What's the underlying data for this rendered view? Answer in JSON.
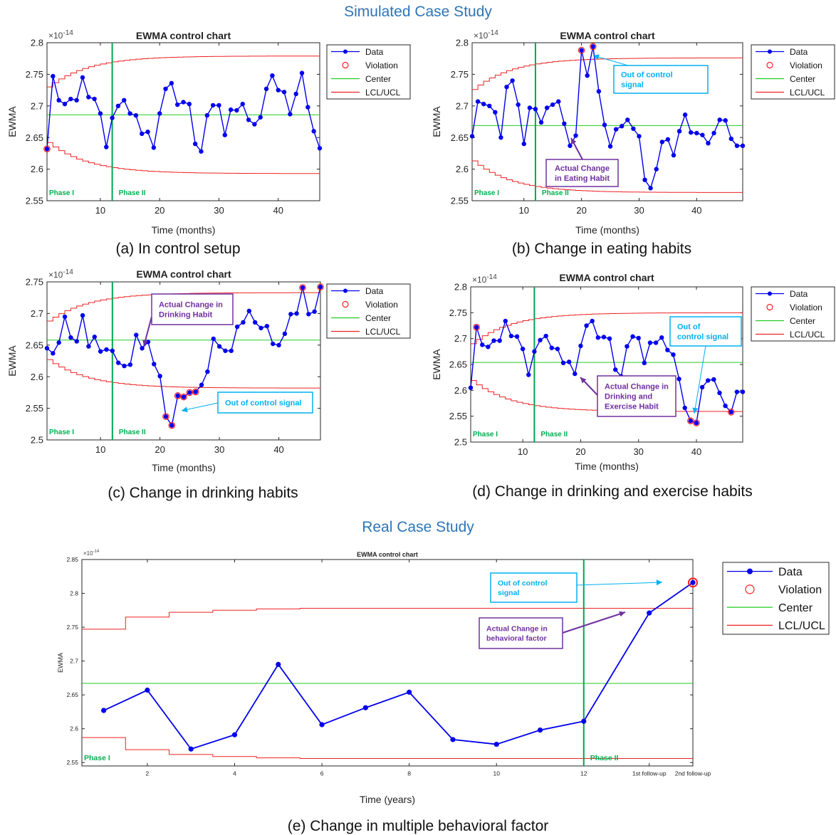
{
  "headings": {
    "simulated": "Simulated Case Study",
    "real": "Real Case Study"
  },
  "colors": {
    "heading": "#2e75b6",
    "data": "#0000ee",
    "violation": "#ff2020",
    "center": "#22cc22",
    "limits": "#ee2222",
    "phase_line": "#00a651",
    "phase_text": "#00b050",
    "callout_blue": "#00b0f0",
    "callout_purple": "#7030a0"
  },
  "chart_data": [
    {
      "id": "a",
      "type": "line",
      "title": "EWMA control chart",
      "caption": "(a) In control setup",
      "xlabel": "Time (months)",
      "ylabel": "EWMA",
      "exponent": "×10",
      "exponent_power": "-14",
      "xlim": [
        1,
        47
      ],
      "ylim": [
        2.55,
        2.8
      ],
      "xticks": [
        10,
        20,
        30,
        40
      ],
      "yticks": [
        2.55,
        2.6,
        2.65,
        2.7,
        2.75,
        2.8
      ],
      "ytick_labels": [
        "2.55",
        "2.6",
        "2.65",
        "2.7",
        "2.75",
        "2.8"
      ],
      "phase_x": 12,
      "phase_labels": [
        "Phase I",
        "Phase II"
      ],
      "center": 2.686,
      "ucl_inf": 2.779,
      "lcl_inf": 2.593,
      "lim_delta0": 0.049,
      "legend": [
        "Data",
        "Violation",
        "Center",
        "LCL/UCL"
      ],
      "x": [
        1,
        2,
        3,
        4,
        5,
        6,
        7,
        8,
        9,
        10,
        11,
        12,
        13,
        14,
        15,
        16,
        17,
        18,
        19,
        20,
        21,
        22,
        23,
        24,
        25,
        26,
        27,
        28,
        29,
        30,
        31,
        32,
        33,
        34,
        35,
        36,
        37,
        38,
        39,
        40,
        41,
        42,
        43,
        44,
        45,
        46,
        47
      ],
      "values": [
        2.632,
        2.747,
        2.709,
        2.703,
        2.711,
        2.709,
        2.745,
        2.714,
        2.711,
        2.688,
        2.635,
        2.681,
        2.7,
        2.709,
        2.688,
        2.685,
        2.656,
        2.659,
        2.634,
        2.688,
        2.727,
        2.736,
        2.702,
        2.706,
        2.703,
        2.64,
        2.628,
        2.685,
        2.701,
        2.701,
        2.654,
        2.694,
        2.693,
        2.703,
        2.678,
        2.671,
        2.682,
        2.727,
        2.748,
        2.725,
        2.722,
        2.687,
        2.719,
        2.752,
        2.698,
        2.66,
        2.633
      ],
      "violations": [
        1
      ],
      "callouts": []
    },
    {
      "id": "b",
      "type": "line",
      "title": "EWMA control chart",
      "caption": "(b) Change in eating habits",
      "xlabel": "Time (months)",
      "ylabel": "EWMA",
      "exponent": "×10",
      "exponent_power": "-14",
      "xlim": [
        1,
        48
      ],
      "ylim": [
        2.55,
        2.8
      ],
      "xticks": [
        10,
        20,
        30,
        40
      ],
      "yticks": [
        2.55,
        2.6,
        2.65,
        2.7,
        2.75,
        2.8
      ],
      "ytick_labels": [
        "2.55",
        "2.6",
        "2.65",
        "2.7",
        "2.75",
        "2.8"
      ],
      "phase_x": 12,
      "phase_labels": [
        "Phase I",
        "Phase II"
      ],
      "center": 2.669,
      "ucl_inf": 2.776,
      "lcl_inf": 2.563,
      "lim_delta0": 0.05,
      "legend": [
        "Data",
        "Violation",
        "Center",
        "LCL/UCL"
      ],
      "x": [
        1,
        2,
        3,
        4,
        5,
        6,
        7,
        8,
        9,
        10,
        11,
        12,
        13,
        14,
        15,
        16,
        17,
        18,
        19,
        20,
        21,
        22,
        23,
        24,
        25,
        26,
        27,
        28,
        29,
        30,
        31,
        32,
        33,
        34,
        35,
        36,
        37,
        38,
        39,
        40,
        41,
        42,
        43,
        44,
        45,
        46,
        47,
        48
      ],
      "values": [
        2.652,
        2.707,
        2.703,
        2.7,
        2.69,
        2.65,
        2.73,
        2.74,
        2.702,
        2.64,
        2.697,
        2.695,
        2.674,
        2.697,
        2.702,
        2.707,
        2.672,
        2.637,
        2.653,
        2.788,
        2.748,
        2.794,
        2.723,
        2.67,
        2.636,
        2.663,
        2.668,
        2.678,
        2.664,
        2.652,
        2.583,
        2.57,
        2.6,
        2.643,
        2.647,
        2.622,
        2.66,
        2.686,
        2.658,
        2.657,
        2.654,
        2.641,
        2.657,
        2.678,
        2.677,
        2.648,
        2.637,
        2.637
      ],
      "violations": [
        20,
        22
      ],
      "callouts": [
        {
          "text": [
            "Out of control",
            "signal"
          ],
          "style": "blue"
        },
        {
          "text": [
            "Actual Change",
            "in Eating Habit"
          ],
          "style": "purple"
        }
      ]
    },
    {
      "id": "c",
      "type": "line",
      "title": "EWMA control chart",
      "caption": "(c) Change in drinking habits",
      "xlabel": "Time (months)",
      "ylabel": "EWMA",
      "exponent": "×10",
      "exponent_power": "-14",
      "xlim": [
        1,
        47
      ],
      "ylim": [
        2.5,
        2.75
      ],
      "xticks": [
        10,
        20,
        30,
        40
      ],
      "yticks": [
        2.5,
        2.55,
        2.6,
        2.65,
        2.7,
        2.75
      ],
      "ytick_labels": [
        "2.5",
        "2.55",
        "2.6",
        "2.65",
        "2.7",
        "2.75"
      ],
      "phase_x": 12,
      "phase_labels": [
        "Phase I",
        "Phase II"
      ],
      "center": 2.658,
      "ucl_inf": 2.733,
      "lcl_inf": 2.582,
      "lim_delta0": 0.045,
      "legend": [
        "Data",
        "Violation",
        "Center",
        "LCL/UCL"
      ],
      "x": [
        1,
        2,
        3,
        4,
        5,
        6,
        7,
        8,
        9,
        10,
        11,
        12,
        13,
        14,
        15,
        16,
        17,
        18,
        19,
        20,
        21,
        22,
        23,
        24,
        25,
        26,
        27,
        28,
        29,
        30,
        31,
        32,
        33,
        34,
        35,
        36,
        37,
        38,
        39,
        40,
        41,
        42,
        43,
        44,
        45,
        46,
        47
      ],
      "values": [
        2.645,
        2.637,
        2.654,
        2.695,
        2.662,
        2.656,
        2.697,
        2.648,
        2.663,
        2.64,
        2.643,
        2.641,
        2.622,
        2.617,
        2.619,
        2.666,
        2.645,
        2.655,
        2.62,
        2.601,
        2.537,
        2.523,
        2.57,
        2.568,
        2.575,
        2.576,
        2.587,
        2.608,
        2.66,
        2.648,
        2.641,
        2.641,
        2.679,
        2.686,
        2.704,
        2.686,
        2.677,
        2.68,
        2.652,
        2.65,
        2.668,
        2.699,
        2.7,
        2.741,
        2.699,
        2.703,
        2.742
      ],
      "violations": [
        21,
        22,
        23,
        24,
        25,
        26,
        44,
        47
      ],
      "callouts": [
        {
          "text": [
            "Actual Change in",
            "Drinking Habit"
          ],
          "style": "purple"
        },
        {
          "text": [
            "Out of control signal"
          ],
          "style": "blue"
        }
      ]
    },
    {
      "id": "d",
      "type": "line",
      "title": "EWMA control chart",
      "caption": "(d) Change in drinking and exercise habits",
      "xlabel": "Time (months)",
      "ylabel": "EWMA",
      "exponent": "×10",
      "exponent_power": "-14",
      "xlim": [
        1,
        48
      ],
      "ylim": [
        2.5,
        2.8
      ],
      "xticks": [
        10,
        20,
        30,
        40
      ],
      "yticks": [
        2.5,
        2.55,
        2.6,
        2.65,
        2.7,
        2.75,
        2.8
      ],
      "ytick_labels": [
        "2.5",
        "2.55",
        "2.6",
        "2.65",
        "2.7",
        "2.75",
        "2.8"
      ],
      "phase_x": 12,
      "phase_labels": [
        "Phase I",
        "Phase II"
      ],
      "center": 2.654,
      "ucl_inf": 2.75,
      "lcl_inf": 2.559,
      "lim_delta0": 0.06,
      "legend": [
        "Data",
        "Violation",
        "Center",
        "LCL/UCL"
      ],
      "x": [
        1,
        2,
        3,
        4,
        5,
        6,
        7,
        8,
        9,
        10,
        11,
        12,
        13,
        14,
        15,
        16,
        17,
        18,
        19,
        20,
        21,
        22,
        23,
        24,
        25,
        26,
        27,
        28,
        29,
        30,
        31,
        32,
        33,
        34,
        35,
        36,
        37,
        38,
        39,
        40,
        41,
        42,
        43,
        44,
        45,
        46,
        47,
        48
      ],
      "values": [
        2.605,
        2.722,
        2.688,
        2.684,
        2.696,
        2.696,
        2.734,
        2.705,
        2.704,
        2.68,
        2.63,
        2.675,
        2.697,
        2.705,
        2.682,
        2.68,
        2.653,
        2.655,
        2.632,
        2.686,
        2.725,
        2.734,
        2.702,
        2.703,
        2.7,
        2.64,
        2.627,
        2.685,
        2.704,
        2.701,
        2.653,
        2.692,
        2.692,
        2.702,
        2.678,
        2.669,
        2.622,
        2.566,
        2.541,
        2.537,
        2.606,
        2.619,
        2.621,
        2.595,
        2.57,
        2.558,
        2.597,
        2.597
      ],
      "violations": [
        2,
        39,
        40,
        46
      ],
      "callouts": [
        {
          "text": [
            "Out of",
            "control signal"
          ],
          "style": "blue"
        },
        {
          "text": [
            "Actual Change in",
            "Drinking and",
            "Exercise Habit"
          ],
          "style": "purple"
        }
      ]
    },
    {
      "id": "e",
      "type": "line",
      "title": "EWMA control chart",
      "caption": "(e) Change in multiple behavioral factor",
      "xlabel": "Time (years)",
      "ylabel": "EWMA",
      "exponent": "×10",
      "exponent_power": "-14",
      "xlim": [
        0.5,
        14.5
      ],
      "ylim": [
        2.545,
        2.85
      ],
      "xticks": [
        2,
        4,
        6,
        8,
        10,
        12,
        13.5,
        14.5
      ],
      "xtick_labels": [
        "2",
        "4",
        "6",
        "8",
        "10",
        "12",
        "1st follow-up",
        "2nd follow-up"
      ],
      "yticks": [
        2.55,
        2.6,
        2.65,
        2.7,
        2.75,
        2.8,
        2.85
      ],
      "ytick_labels": [
        "2.55",
        "2.6",
        "2.65",
        "2.7",
        "2.75",
        "2.8",
        "2.85"
      ],
      "phase_x": 12,
      "phase_labels": [
        "Phase I",
        "Phase II"
      ],
      "center": 2.667,
      "ucl_steps": [
        [
          0.5,
          2.747
        ],
        [
          1.5,
          2.765
        ],
        [
          2.5,
          2.772
        ],
        [
          3.5,
          2.775
        ],
        [
          4.5,
          2.777
        ],
        [
          5.5,
          2.778
        ],
        [
          14.5,
          2.779
        ]
      ],
      "lcl_steps": [
        [
          0.5,
          2.587
        ],
        [
          1.5,
          2.569
        ],
        [
          2.5,
          2.562
        ],
        [
          3.5,
          2.559
        ],
        [
          4.5,
          2.557
        ],
        [
          5.5,
          2.556
        ],
        [
          14.5,
          2.555
        ]
      ],
      "legend": [
        "Data",
        "Violation",
        "Center",
        "LCL/UCL"
      ],
      "x": [
        1,
        2,
        3,
        4,
        5,
        6,
        7,
        8,
        9,
        10,
        11,
        12,
        13.5,
        14.5
      ],
      "values": [
        2.627,
        2.657,
        2.57,
        2.591,
        2.695,
        2.606,
        2.631,
        2.654,
        2.584,
        2.577,
        2.598,
        2.611,
        2.771,
        2.816
      ],
      "violations": [
        14.5
      ],
      "callouts": [
        {
          "text": [
            "Out of control",
            "signal"
          ],
          "style": "blue"
        },
        {
          "text": [
            "Actual Change in",
            "behavioral factor"
          ],
          "style": "purple"
        }
      ]
    }
  ]
}
